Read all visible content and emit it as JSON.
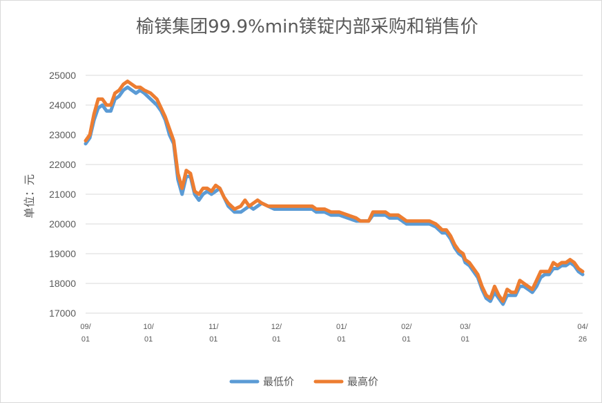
{
  "chart_data": {
    "type": "line",
    "title": "榆镁集团99.9%min镁锭内部采购和销售价",
    "ylabel": "单位：元",
    "xlabel": "",
    "ylim": [
      17000,
      25000
    ],
    "yticks": [
      "25000",
      "24000",
      "23000",
      "22000",
      "21000",
      "20000",
      "19000",
      "18000",
      "17000"
    ],
    "x_start": "09/01",
    "x_end": "04/26",
    "xticks": [
      {
        "top": "09/",
        "bottom": "01",
        "x": "09/01"
      },
      {
        "top": "10/",
        "bottom": "01",
        "x": "10/01"
      },
      {
        "top": "11/",
        "bottom": "01",
        "x": "11/01"
      },
      {
        "top": "12/",
        "bottom": "01",
        "x": "12/01"
      },
      {
        "top": "01/",
        "bottom": "01",
        "x": "01/01"
      },
      {
        "top": "02/",
        "bottom": "01",
        "x": "02/01"
      },
      {
        "top": "03/",
        "bottom": "01",
        "x": "03/01"
      },
      {
        "top": "04/",
        "bottom": "26",
        "x": "04/26"
      }
    ],
    "grid": true,
    "legend_position": "bottom",
    "series": [
      {
        "name": "最低价",
        "color": "#5b9bd5",
        "points": [
          [
            "09/01",
            22700
          ],
          [
            "09/03",
            22900
          ],
          [
            "09/05",
            23500
          ],
          [
            "09/07",
            23900
          ],
          [
            "09/09",
            24000
          ],
          [
            "09/11",
            23800
          ],
          [
            "09/13",
            23800
          ],
          [
            "09/15",
            24200
          ],
          [
            "09/17",
            24300
          ],
          [
            "09/19",
            24500
          ],
          [
            "09/21",
            24600
          ],
          [
            "09/23",
            24500
          ],
          [
            "09/25",
            24400
          ],
          [
            "09/27",
            24500
          ],
          [
            "09/29",
            24400
          ],
          [
            "10/02",
            24200
          ],
          [
            "10/05",
            24000
          ],
          [
            "10/07",
            23800
          ],
          [
            "10/09",
            23500
          ],
          [
            "10/11",
            23000
          ],
          [
            "10/13",
            22700
          ],
          [
            "10/15",
            21500
          ],
          [
            "10/17",
            21000
          ],
          [
            "10/19",
            21600
          ],
          [
            "10/21",
            21600
          ],
          [
            "10/23",
            21000
          ],
          [
            "10/25",
            20800
          ],
          [
            "10/27",
            21000
          ],
          [
            "10/29",
            21100
          ],
          [
            "10/31",
            21000
          ],
          [
            "11/02",
            21100
          ],
          [
            "11/04",
            21200
          ],
          [
            "11/06",
            20900
          ],
          [
            "11/08",
            20600
          ],
          [
            "11/11",
            20400
          ],
          [
            "11/14",
            20400
          ],
          [
            "11/16",
            20500
          ],
          [
            "11/18",
            20600
          ],
          [
            "11/20",
            20500
          ],
          [
            "11/22",
            20600
          ],
          [
            "11/24",
            20700
          ],
          [
            "11/27",
            20600
          ],
          [
            "11/30",
            20500
          ],
          [
            "12/06",
            20500
          ],
          [
            "12/12",
            20500
          ],
          [
            "12/18",
            20500
          ],
          [
            "12/20",
            20400
          ],
          [
            "12/24",
            20400
          ],
          [
            "12/27",
            20300
          ],
          [
            "12/31",
            20300
          ],
          [
            "01/04",
            20200
          ],
          [
            "01/08",
            20100
          ],
          [
            "01/10",
            20100
          ],
          [
            "01/14",
            20100
          ],
          [
            "01/16",
            20300
          ],
          [
            "01/18",
            20300
          ],
          [
            "01/22",
            20300
          ],
          [
            "01/24",
            20200
          ],
          [
            "01/28",
            20200
          ],
          [
            "02/01",
            20000
          ],
          [
            "02/08",
            20000
          ],
          [
            "02/12",
            20000
          ],
          [
            "02/15",
            19900
          ],
          [
            "02/18",
            19700
          ],
          [
            "02/20",
            19700
          ],
          [
            "02/22",
            19500
          ],
          [
            "02/24",
            19200
          ],
          [
            "02/26",
            19000
          ],
          [
            "02/28",
            18900
          ],
          [
            "03/01",
            18700
          ],
          [
            "03/03",
            18600
          ],
          [
            "03/05",
            18400
          ],
          [
            "03/07",
            18200
          ],
          [
            "03/09",
            17800
          ],
          [
            "03/11",
            17500
          ],
          [
            "03/13",
            17400
          ],
          [
            "03/15",
            17700
          ],
          [
            "03/17",
            17500
          ],
          [
            "03/19",
            17300
          ],
          [
            "03/21",
            17600
          ],
          [
            "03/23",
            17600
          ],
          [
            "03/25",
            17600
          ],
          [
            "03/27",
            17900
          ],
          [
            "03/29",
            17900
          ],
          [
            "03/31",
            17800
          ],
          [
            "04/02",
            17700
          ],
          [
            "04/04",
            17900
          ],
          [
            "04/06",
            18200
          ],
          [
            "04/08",
            18300
          ],
          [
            "04/10",
            18300
          ],
          [
            "04/12",
            18500
          ],
          [
            "04/14",
            18500
          ],
          [
            "04/16",
            18600
          ],
          [
            "04/18",
            18600
          ],
          [
            "04/20",
            18700
          ],
          [
            "04/22",
            18600
          ],
          [
            "04/24",
            18400
          ],
          [
            "04/26",
            18300
          ]
        ]
      },
      {
        "name": "最高价",
        "color": "#ed7d31",
        "points": [
          [
            "09/01",
            22800
          ],
          [
            "09/03",
            23000
          ],
          [
            "09/05",
            23700
          ],
          [
            "09/07",
            24200
          ],
          [
            "09/09",
            24200
          ],
          [
            "09/11",
            24000
          ],
          [
            "09/13",
            24000
          ],
          [
            "09/15",
            24400
          ],
          [
            "09/17",
            24500
          ],
          [
            "09/19",
            24700
          ],
          [
            "09/21",
            24800
          ],
          [
            "09/23",
            24700
          ],
          [
            "09/25",
            24600
          ],
          [
            "09/27",
            24600
          ],
          [
            "09/29",
            24500
          ],
          [
            "10/02",
            24400
          ],
          [
            "10/05",
            24200
          ],
          [
            "10/07",
            23900
          ],
          [
            "10/09",
            23600
          ],
          [
            "10/11",
            23200
          ],
          [
            "10/13",
            22800
          ],
          [
            "10/15",
            21700
          ],
          [
            "10/17",
            21200
          ],
          [
            "10/19",
            21800
          ],
          [
            "10/21",
            21700
          ],
          [
            "10/23",
            21100
          ],
          [
            "10/25",
            21000
          ],
          [
            "10/27",
            21200
          ],
          [
            "10/29",
            21200
          ],
          [
            "10/31",
            21100
          ],
          [
            "11/02",
            21300
          ],
          [
            "11/04",
            21200
          ],
          [
            "11/06",
            20900
          ],
          [
            "11/08",
            20700
          ],
          [
            "11/11",
            20500
          ],
          [
            "11/14",
            20600
          ],
          [
            "11/16",
            20800
          ],
          [
            "11/18",
            20600
          ],
          [
            "11/20",
            20700
          ],
          [
            "11/22",
            20800
          ],
          [
            "11/24",
            20700
          ],
          [
            "11/27",
            20600
          ],
          [
            "11/30",
            20600
          ],
          [
            "12/06",
            20600
          ],
          [
            "12/12",
            20600
          ],
          [
            "12/18",
            20600
          ],
          [
            "12/20",
            20500
          ],
          [
            "12/24",
            20500
          ],
          [
            "12/27",
            20400
          ],
          [
            "12/31",
            20400
          ],
          [
            "01/04",
            20300
          ],
          [
            "01/08",
            20200
          ],
          [
            "01/10",
            20100
          ],
          [
            "01/14",
            20100
          ],
          [
            "01/16",
            20400
          ],
          [
            "01/18",
            20400
          ],
          [
            "01/22",
            20400
          ],
          [
            "01/24",
            20300
          ],
          [
            "01/28",
            20300
          ],
          [
            "02/01",
            20100
          ],
          [
            "02/08",
            20100
          ],
          [
            "02/12",
            20100
          ],
          [
            "02/15",
            20000
          ],
          [
            "02/18",
            19800
          ],
          [
            "02/20",
            19800
          ],
          [
            "02/22",
            19600
          ],
          [
            "02/24",
            19300
          ],
          [
            "02/26",
            19100
          ],
          [
            "02/28",
            19000
          ],
          [
            "03/01",
            18800
          ],
          [
            "03/03",
            18700
          ],
          [
            "03/05",
            18500
          ],
          [
            "03/07",
            18300
          ],
          [
            "03/09",
            17900
          ],
          [
            "03/11",
            17600
          ],
          [
            "03/13",
            17500
          ],
          [
            "03/15",
            17900
          ],
          [
            "03/17",
            17600
          ],
          [
            "03/19",
            17400
          ],
          [
            "03/21",
            17800
          ],
          [
            "03/23",
            17700
          ],
          [
            "03/25",
            17700
          ],
          [
            "03/27",
            18100
          ],
          [
            "03/29",
            18000
          ],
          [
            "03/31",
            17900
          ],
          [
            "04/02",
            17800
          ],
          [
            "04/04",
            18100
          ],
          [
            "04/06",
            18400
          ],
          [
            "04/08",
            18400
          ],
          [
            "04/10",
            18400
          ],
          [
            "04/12",
            18700
          ],
          [
            "04/14",
            18600
          ],
          [
            "04/16",
            18700
          ],
          [
            "04/18",
            18700
          ],
          [
            "04/20",
            18800
          ],
          [
            "04/22",
            18700
          ],
          [
            "04/24",
            18500
          ],
          [
            "04/26",
            18400
          ]
        ]
      }
    ]
  }
}
